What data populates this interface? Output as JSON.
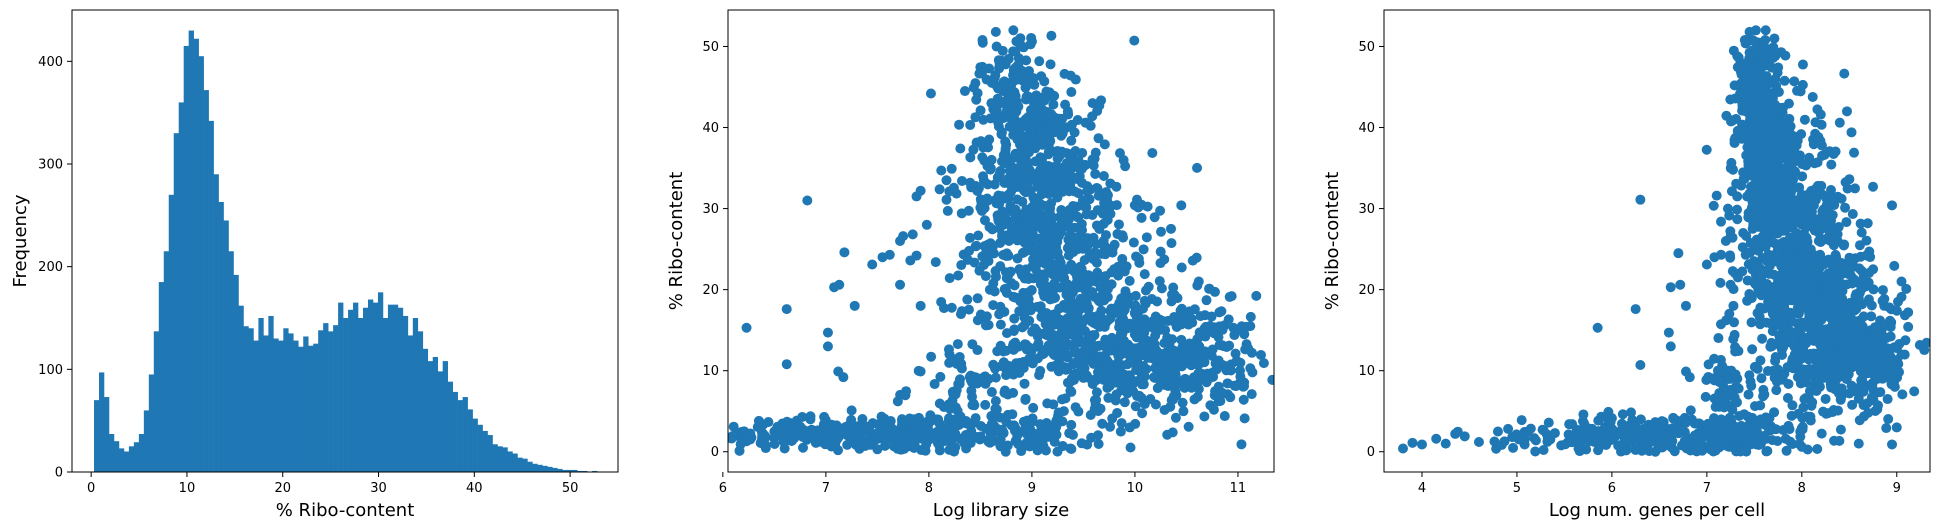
{
  "chart_data": [
    {
      "type": "histogram",
      "xlabel": "% Ribo-content",
      "ylabel": "Frequency",
      "xlim": [
        -2,
        55
      ],
      "ylim": [
        0,
        450
      ],
      "xticks": [
        0,
        10,
        20,
        30,
        40,
        50
      ],
      "yticks": [
        0,
        100,
        200,
        300,
        400
      ],
      "grid": false,
      "color": "#1f77b4",
      "bin_start": 0.3,
      "bin_width": 0.52,
      "counts": [
        70,
        97,
        73,
        37,
        30,
        23,
        20,
        25,
        29,
        37,
        60,
        95,
        137,
        185,
        215,
        270,
        330,
        360,
        415,
        430,
        422,
        405,
        372,
        342,
        290,
        263,
        245,
        215,
        192,
        162,
        142,
        140,
        128,
        150,
        133,
        152,
        130,
        128,
        140,
        135,
        128,
        122,
        132,
        123,
        125,
        138,
        145,
        137,
        143,
        165,
        150,
        158,
        165,
        150,
        160,
        168,
        165,
        175,
        150,
        163,
        163,
        160,
        152,
        133,
        150,
        137,
        120,
        108,
        112,
        98,
        108,
        88,
        78,
        70,
        73,
        61,
        52,
        46,
        40,
        36,
        27,
        25,
        24,
        20,
        18,
        14,
        13,
        10,
        8,
        7,
        6,
        5,
        4,
        3,
        2,
        2,
        2,
        1,
        1,
        0,
        1
      ]
    },
    {
      "type": "scatter",
      "xlabel": "Log library size",
      "ylabel": "% Ribo-content",
      "xlim": [
        6.05,
        11.35
      ],
      "ylim": [
        -2.5,
        54.5
      ],
      "xticks": [
        6,
        7,
        8,
        9,
        10,
        11
      ],
      "yticks": [
        0,
        10,
        20,
        30,
        40,
        50
      ],
      "grid": false,
      "color": "#1f77b4",
      "outliers": [
        [
          6.23,
          15.3
        ],
        [
          6.62,
          17.6
        ],
        [
          6.62,
          10.8
        ],
        [
          6.82,
          31.0
        ],
        [
          7.02,
          14.7
        ],
        [
          7.02,
          13.0
        ],
        [
          7.08,
          20.3
        ],
        [
          7.13,
          20.6
        ],
        [
          7.18,
          24.6
        ],
        [
          7.28,
          18.0
        ],
        [
          7.12,
          9.9
        ],
        [
          7.17,
          9.2
        ],
        [
          7.45,
          23.1
        ],
        [
          7.55,
          24.0
        ],
        [
          7.62,
          24.3
        ],
        [
          7.72,
          26.0
        ],
        [
          7.75,
          26.6
        ],
        [
          7.72,
          20.6
        ],
        [
          7.82,
          23.6
        ],
        [
          7.88,
          24.2
        ],
        [
          7.92,
          18.0
        ],
        [
          7.88,
          31.5
        ],
        [
          7.92,
          32.2
        ],
        [
          7.98,
          28.0
        ],
        [
          8.02,
          44.2
        ],
        [
          8.12,
          34.7
        ],
        [
          8.35,
          44.5
        ],
        [
          8.52,
          50.8
        ],
        [
          8.65,
          51.8
        ],
        [
          8.82,
          52.0
        ],
        [
          8.92,
          49.9
        ],
        [
          9.12,
          45.7
        ],
        [
          9.35,
          41.6
        ],
        [
          9.52,
          40.6
        ],
        [
          9.62,
          36.9
        ],
        [
          9.82,
          32.7
        ],
        [
          10.02,
          31.1
        ],
        [
          10.35,
          27.5
        ],
        [
          10.45,
          30.4
        ],
        [
          10.62,
          21.0
        ],
        [
          10.72,
          20.1
        ],
        [
          10.82,
          17.2
        ],
        [
          10.92,
          19.1
        ],
        [
          11.08,
          15.4
        ],
        [
          11.12,
          15.5
        ],
        [
          11.02,
          10.0
        ],
        [
          11.12,
          10.3
        ],
        [
          10.98,
          8.1
        ],
        [
          10.55,
          7.9
        ],
        [
          9.95,
          3.0
        ],
        [
          10.15,
          6.5
        ],
        [
          6.23,
          1.3
        ],
        [
          6.35,
          3.8
        ],
        [
          6.5,
          2.5
        ],
        [
          6.6,
          0.4
        ],
        [
          6.85,
          4.0
        ],
        [
          7.25,
          5.1
        ],
        [
          7.5,
          0.3
        ],
        [
          8.1,
          0.8
        ],
        [
          8.6,
          1.4
        ],
        [
          9.15,
          1.9
        ],
        [
          9.3,
          0.7
        ]
      ],
      "density": [
        {
          "x": 7.6,
          "y": 2.3,
          "sx": 0.45,
          "sy": 1.2,
          "n": 180
        },
        {
          "x": 6.6,
          "y": 2.2,
          "sx": 0.28,
          "sy": 0.9,
          "n": 110
        },
        {
          "x": 8.7,
          "y": 2.0,
          "sx": 0.45,
          "sy": 1.3,
          "n": 120
        },
        {
          "x": 8.4,
          "y": 8.0,
          "sx": 0.3,
          "sy": 2.5,
          "n": 70
        },
        {
          "x": 9.25,
          "y": 25.0,
          "sx": 0.45,
          "sy": 7.5,
          "n": 500
        },
        {
          "x": 9.0,
          "y": 33.0,
          "sx": 0.3,
          "sy": 6.5,
          "n": 260
        },
        {
          "x": 8.95,
          "y": 41.0,
          "sx": 0.22,
          "sy": 4.0,
          "n": 150
        },
        {
          "x": 8.75,
          "y": 46.5,
          "sx": 0.18,
          "sy": 2.5,
          "n": 50
        },
        {
          "x": 10.1,
          "y": 11.0,
          "sx": 0.45,
          "sy": 3.5,
          "n": 280
        },
        {
          "x": 10.7,
          "y": 11.5,
          "sx": 0.25,
          "sy": 3.0,
          "n": 90
        },
        {
          "x": 9.6,
          "y": 14.0,
          "sx": 0.55,
          "sy": 4.5,
          "n": 300
        }
      ]
    },
    {
      "type": "scatter",
      "xlabel": "Log num. genes per cell",
      "ylabel": "% Ribo-content",
      "xlim": [
        3.6,
        9.35
      ],
      "ylim": [
        -2.5,
        54.5
      ],
      "xticks": [
        4,
        5,
        6,
        7,
        8,
        9
      ],
      "yticks": [
        0,
        10,
        20,
        30,
        40,
        50
      ],
      "grid": false,
      "color": "#1f77b4",
      "outliers": [
        [
          3.8,
          0.4
        ],
        [
          3.9,
          1.1
        ],
        [
          4.0,
          0.9
        ],
        [
          4.15,
          1.6
        ],
        [
          4.25,
          1.0
        ],
        [
          4.35,
          2.2
        ],
        [
          4.45,
          1.9
        ],
        [
          4.6,
          1.2
        ],
        [
          4.8,
          2.5
        ],
        [
          4.95,
          1.8
        ],
        [
          5.05,
          3.9
        ],
        [
          5.2,
          1.4
        ],
        [
          5.4,
          2.3
        ],
        [
          5.55,
          3.4
        ],
        [
          5.7,
          4.6
        ],
        [
          5.85,
          15.3
        ],
        [
          6.3,
          31.1
        ],
        [
          6.25,
          17.6
        ],
        [
          6.3,
          10.7
        ],
        [
          6.6,
          14.7
        ],
        [
          6.62,
          13.0
        ],
        [
          6.62,
          20.3
        ],
        [
          6.7,
          24.5
        ],
        [
          6.72,
          20.6
        ],
        [
          6.78,
          18.0
        ],
        [
          6.78,
          9.9
        ],
        [
          6.82,
          9.2
        ],
        [
          7.0,
          23.1
        ],
        [
          7.08,
          24.0
        ],
        [
          7.15,
          24.3
        ],
        [
          7.2,
          26.0
        ],
        [
          7.25,
          26.6
        ],
        [
          7.25,
          20.6
        ],
        [
          7.28,
          18.0
        ],
        [
          7.32,
          31.5
        ],
        [
          7.35,
          44.2
        ],
        [
          7.4,
          50.8
        ],
        [
          7.45,
          51.8
        ],
        [
          7.62,
          52.0
        ],
        [
          7.7,
          49.9
        ],
        [
          7.92,
          45.7
        ],
        [
          8.2,
          41.6
        ],
        [
          8.4,
          40.6
        ],
        [
          8.55,
          36.9
        ],
        [
          8.75,
          32.7
        ],
        [
          8.95,
          30.4
        ],
        [
          9.05,
          21.0
        ],
        [
          9.1,
          20.1
        ],
        [
          9.12,
          17.2
        ],
        [
          9.05,
          19.1
        ],
        [
          9.12,
          15.4
        ],
        [
          9.05,
          12.0
        ],
        [
          8.98,
          8.0
        ],
        [
          8.95,
          9.5
        ],
        [
          9.0,
          3.0
        ],
        [
          6.9,
          0.8
        ],
        [
          7.4,
          0.3
        ],
        [
          8.0,
          0.6
        ],
        [
          8.6,
          1.0
        ],
        [
          8.95,
          0.9
        ],
        [
          8.0,
          2.9
        ]
      ],
      "density": [
        {
          "x": 6.4,
          "y": 2.0,
          "sx": 0.45,
          "sy": 1.2,
          "n": 160
        },
        {
          "x": 5.5,
          "y": 2.0,
          "sx": 0.35,
          "sy": 1.0,
          "n": 60
        },
        {
          "x": 7.3,
          "y": 2.0,
          "sx": 0.3,
          "sy": 1.3,
          "n": 160
        },
        {
          "x": 7.2,
          "y": 8.0,
          "sx": 0.15,
          "sy": 3.0,
          "n": 60
        },
        {
          "x": 7.9,
          "y": 24.0,
          "sx": 0.3,
          "sy": 8.0,
          "n": 520
        },
        {
          "x": 7.65,
          "y": 34.0,
          "sx": 0.15,
          "sy": 6.0,
          "n": 280
        },
        {
          "x": 7.55,
          "y": 42.0,
          "sx": 0.12,
          "sy": 4.0,
          "n": 160
        },
        {
          "x": 7.5,
          "y": 47.0,
          "sx": 0.1,
          "sy": 2.5,
          "n": 60
        },
        {
          "x": 8.4,
          "y": 12.0,
          "sx": 0.3,
          "sy": 4.0,
          "n": 320
        },
        {
          "x": 8.8,
          "y": 11.5,
          "sx": 0.15,
          "sy": 3.0,
          "n": 90
        },
        {
          "x": 8.25,
          "y": 20.0,
          "sx": 0.3,
          "sy": 6.0,
          "n": 220
        }
      ]
    }
  ]
}
